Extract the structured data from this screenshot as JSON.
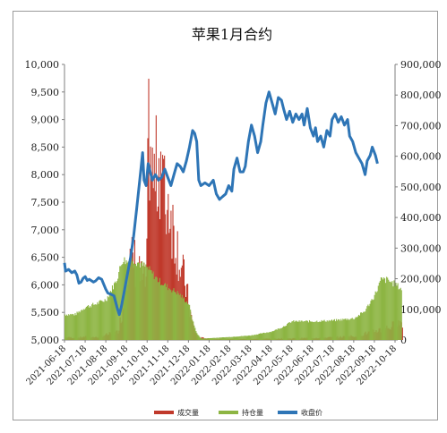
{
  "chart_data": {
    "type": "bar+line",
    "title": "苹果1月合约",
    "x_categories": [
      "2021-06-18",
      "2021-07-18",
      "2021-08-18",
      "2021-09-18",
      "2021-10-18",
      "2021-11-18",
      "2021-12-18",
      "2022-01-18",
      "2022-02-18",
      "2022-03-18",
      "2022-04-18",
      "2022-05-18",
      "2022-06-18",
      "2022-07-18",
      "2022-08-18",
      "2022-09-18",
      "2022-10-18"
    ],
    "y_left": {
      "min": 5000,
      "max": 10000,
      "ticks": [
        "5,000",
        "5,500",
        "6,000",
        "6,500",
        "7,000",
        "7,500",
        "8,000",
        "8,500",
        "9,000",
        "9,500",
        "10,000"
      ]
    },
    "y_right": {
      "min": 0,
      "max": 900000,
      "ticks": [
        "0",
        "100,000",
        "200,000",
        "300,000",
        "400,000",
        "500,000",
        "600,000",
        "700,000",
        "800,000",
        "900,000"
      ]
    },
    "series": [
      {
        "name": "成交量",
        "type": "bar",
        "axis": "right",
        "color": "#c0392b",
        "points": [
          {
            "t": 0,
            "v": 10000
          },
          {
            "t": 0.5,
            "v": 8000
          },
          {
            "t": 1,
            "v": 12000
          },
          {
            "t": 1.5,
            "v": 10000
          },
          {
            "t": 2,
            "v": 20000
          },
          {
            "t": 2.5,
            "v": 30000
          },
          {
            "t": 2.8,
            "v": 140000
          },
          {
            "t": 3.0,
            "v": 290000
          },
          {
            "t": 3.3,
            "v": 310000
          },
          {
            "t": 3.6,
            "v": 240000
          },
          {
            "t": 3.9,
            "v": 210000
          },
          {
            "t": 4.0,
            "v": 820000
          },
          {
            "t": 4.2,
            "v": 600000
          },
          {
            "t": 4.4,
            "v": 650000
          },
          {
            "t": 4.6,
            "v": 720000
          },
          {
            "t": 4.8,
            "v": 520000
          },
          {
            "t": 5.0,
            "v": 540000
          },
          {
            "t": 5.2,
            "v": 430000
          },
          {
            "t": 5.4,
            "v": 360000
          },
          {
            "t": 5.6,
            "v": 270000
          },
          {
            "t": 5.8,
            "v": 210000
          },
          {
            "t": 6.0,
            "v": 110000
          },
          {
            "t": 6.2,
            "v": 40000
          },
          {
            "t": 6.4,
            "v": 10000
          },
          {
            "t": 7.0,
            "v": 4000
          },
          {
            "t": 8.0,
            "v": 3000
          },
          {
            "t": 9.0,
            "v": 4000
          },
          {
            "t": 10.0,
            "v": 5000
          },
          {
            "t": 11.0,
            "v": 6000
          },
          {
            "t": 12.0,
            "v": 8000
          },
          {
            "t": 13.0,
            "v": 10000
          },
          {
            "t": 14.0,
            "v": 15000
          },
          {
            "t": 14.5,
            "v": 25000
          },
          {
            "t": 15.0,
            "v": 35000
          },
          {
            "t": 15.5,
            "v": 45000
          },
          {
            "t": 16.0,
            "v": 60000
          },
          {
            "t": 16.3,
            "v": 70000
          }
        ]
      },
      {
        "name": "持仓量",
        "type": "bar",
        "axis": "right",
        "color": "#8db543",
        "points": [
          {
            "t": 0,
            "v": 85000
          },
          {
            "t": 0.5,
            "v": 85000
          },
          {
            "t": 1,
            "v": 110000
          },
          {
            "t": 1.5,
            "v": 120000
          },
          {
            "t": 2,
            "v": 135000
          },
          {
            "t": 2.5,
            "v": 200000
          },
          {
            "t": 2.8,
            "v": 270000
          },
          {
            "t": 3.0,
            "v": 260000
          },
          {
            "t": 3.3,
            "v": 270000
          },
          {
            "t": 3.6,
            "v": 255000
          },
          {
            "t": 4.0,
            "v": 240000
          },
          {
            "t": 4.5,
            "v": 200000
          },
          {
            "t": 5.0,
            "v": 175000
          },
          {
            "t": 5.5,
            "v": 155000
          },
          {
            "t": 6.0,
            "v": 120000
          },
          {
            "t": 6.2,
            "v": 60000
          },
          {
            "t": 6.4,
            "v": 20000
          },
          {
            "t": 6.6,
            "v": 5000
          },
          {
            "t": 7.0,
            "v": 6000
          },
          {
            "t": 8.0,
            "v": 10000
          },
          {
            "t": 9.0,
            "v": 15000
          },
          {
            "t": 10.0,
            "v": 28000
          },
          {
            "t": 10.5,
            "v": 42000
          },
          {
            "t": 11.0,
            "v": 62000
          },
          {
            "t": 12.0,
            "v": 62000
          },
          {
            "t": 13.0,
            "v": 65000
          },
          {
            "t": 14.0,
            "v": 72000
          },
          {
            "t": 14.5,
            "v": 95000
          },
          {
            "t": 15.0,
            "v": 150000
          },
          {
            "t": 15.3,
            "v": 200000
          },
          {
            "t": 15.6,
            "v": 200000
          },
          {
            "t": 16.0,
            "v": 185000
          },
          {
            "t": 16.3,
            "v": 170000
          }
        ]
      },
      {
        "name": "收盘价",
        "type": "line",
        "axis": "left",
        "color": "#2e75b6",
        "points": [
          {
            "t": 0.0,
            "v": 6400
          },
          {
            "t": 0.05,
            "v": 6250
          },
          {
            "t": 0.2,
            "v": 6280
          },
          {
            "t": 0.35,
            "v": 6220
          },
          {
            "t": 0.5,
            "v": 6250
          },
          {
            "t": 0.6,
            "v": 6180
          },
          {
            "t": 0.7,
            "v": 6030
          },
          {
            "t": 0.8,
            "v": 6050
          },
          {
            "t": 0.9,
            "v": 6120
          },
          {
            "t": 1.0,
            "v": 6150
          },
          {
            "t": 1.1,
            "v": 6080
          },
          {
            "t": 1.2,
            "v": 6100
          },
          {
            "t": 1.4,
            "v": 6050
          },
          {
            "t": 1.5,
            "v": 6070
          },
          {
            "t": 1.65,
            "v": 6130
          },
          {
            "t": 1.8,
            "v": 6100
          },
          {
            "t": 2.0,
            "v": 5920
          },
          {
            "t": 2.1,
            "v": 5850
          },
          {
            "t": 2.25,
            "v": 5830
          },
          {
            "t": 2.4,
            "v": 5800
          },
          {
            "t": 2.55,
            "v": 5580
          },
          {
            "t": 2.65,
            "v": 5460
          },
          {
            "t": 2.75,
            "v": 5600
          },
          {
            "t": 2.9,
            "v": 5900
          },
          {
            "t": 3.05,
            "v": 6200
          },
          {
            "t": 3.2,
            "v": 6500
          },
          {
            "t": 3.35,
            "v": 6900
          },
          {
            "t": 3.5,
            "v": 7400
          },
          {
            "t": 3.6,
            "v": 7750
          },
          {
            "t": 3.7,
            "v": 8100
          },
          {
            "t": 3.78,
            "v": 8400
          },
          {
            "t": 3.85,
            "v": 7900
          },
          {
            "t": 3.95,
            "v": 7800
          },
          {
            "t": 4.05,
            "v": 8200
          },
          {
            "t": 4.15,
            "v": 8050
          },
          {
            "t": 4.25,
            "v": 7900
          },
          {
            "t": 4.4,
            "v": 8000
          },
          {
            "t": 4.55,
            "v": 7900
          },
          {
            "t": 4.7,
            "v": 7950
          },
          {
            "t": 4.85,
            "v": 8100
          },
          {
            "t": 5.0,
            "v": 7950
          },
          {
            "t": 5.15,
            "v": 7800
          },
          {
            "t": 5.3,
            "v": 8000
          },
          {
            "t": 5.45,
            "v": 8200
          },
          {
            "t": 5.6,
            "v": 8150
          },
          {
            "t": 5.75,
            "v": 8050
          },
          {
            "t": 5.9,
            "v": 8250
          },
          {
            "t": 6.05,
            "v": 8500
          },
          {
            "t": 6.2,
            "v": 8800
          },
          {
            "t": 6.3,
            "v": 8750
          },
          {
            "t": 6.4,
            "v": 8600
          },
          {
            "t": 6.5,
            "v": 7900
          },
          {
            "t": 6.6,
            "v": 7800
          },
          {
            "t": 6.8,
            "v": 7850
          },
          {
            "t": 7.0,
            "v": 7800
          },
          {
            "t": 7.2,
            "v": 7900
          },
          {
            "t": 7.35,
            "v": 7650
          },
          {
            "t": 7.5,
            "v": 7550
          },
          {
            "t": 7.65,
            "v": 7600
          },
          {
            "t": 7.8,
            "v": 7650
          },
          {
            "t": 7.95,
            "v": 7800
          },
          {
            "t": 8.1,
            "v": 7700
          },
          {
            "t": 8.2,
            "v": 8100
          },
          {
            "t": 8.35,
            "v": 8300
          },
          {
            "t": 8.5,
            "v": 8050
          },
          {
            "t": 8.65,
            "v": 8050
          },
          {
            "t": 8.75,
            "v": 8150
          },
          {
            "t": 8.9,
            "v": 8600
          },
          {
            "t": 9.05,
            "v": 8900
          },
          {
            "t": 9.2,
            "v": 8700
          },
          {
            "t": 9.35,
            "v": 8400
          },
          {
            "t": 9.5,
            "v": 8600
          },
          {
            "t": 9.6,
            "v": 8900
          },
          {
            "t": 9.75,
            "v": 9300
          },
          {
            "t": 9.9,
            "v": 9500
          },
          {
            "t": 10.05,
            "v": 9300
          },
          {
            "t": 10.2,
            "v": 9100
          },
          {
            "t": 10.35,
            "v": 9400
          },
          {
            "t": 10.5,
            "v": 9350
          },
          {
            "t": 10.6,
            "v": 9200
          },
          {
            "t": 10.75,
            "v": 9000
          },
          {
            "t": 10.9,
            "v": 9150
          },
          {
            "t": 11.05,
            "v": 8950
          },
          {
            "t": 11.2,
            "v": 9100
          },
          {
            "t": 11.35,
            "v": 9000
          },
          {
            "t": 11.5,
            "v": 9100
          },
          {
            "t": 11.6,
            "v": 8900
          },
          {
            "t": 11.75,
            "v": 9200
          },
          {
            "t": 11.9,
            "v": 8850
          },
          {
            "t": 12.05,
            "v": 8700
          },
          {
            "t": 12.15,
            "v": 8850
          },
          {
            "t": 12.25,
            "v": 8600
          },
          {
            "t": 12.4,
            "v": 8700
          },
          {
            "t": 12.55,
            "v": 8500
          },
          {
            "t": 12.7,
            "v": 8800
          },
          {
            "t": 12.85,
            "v": 8700
          },
          {
            "t": 12.95,
            "v": 9000
          },
          {
            "t": 13.1,
            "v": 9100
          },
          {
            "t": 13.25,
            "v": 8950
          },
          {
            "t": 13.4,
            "v": 9050
          },
          {
            "t": 13.55,
            "v": 8900
          },
          {
            "t": 13.7,
            "v": 9000
          },
          {
            "t": 13.8,
            "v": 8700
          },
          {
            "t": 13.95,
            "v": 8600
          },
          {
            "t": 14.1,
            "v": 8400
          },
          {
            "t": 14.25,
            "v": 8300
          },
          {
            "t": 14.4,
            "v": 8200
          },
          {
            "t": 14.55,
            "v": 8000
          },
          {
            "t": 14.65,
            "v": 8250
          },
          {
            "t": 14.8,
            "v": 8350
          },
          {
            "t": 14.9,
            "v": 8500
          },
          {
            "t": 15.05,
            "v": 8350
          },
          {
            "t": 15.15,
            "v": 8200
          }
        ]
      }
    ],
    "legend": {
      "placement": "bottom",
      "entries": [
        "成交量",
        "持仓量",
        "收盘价"
      ]
    },
    "grid": false
  }
}
